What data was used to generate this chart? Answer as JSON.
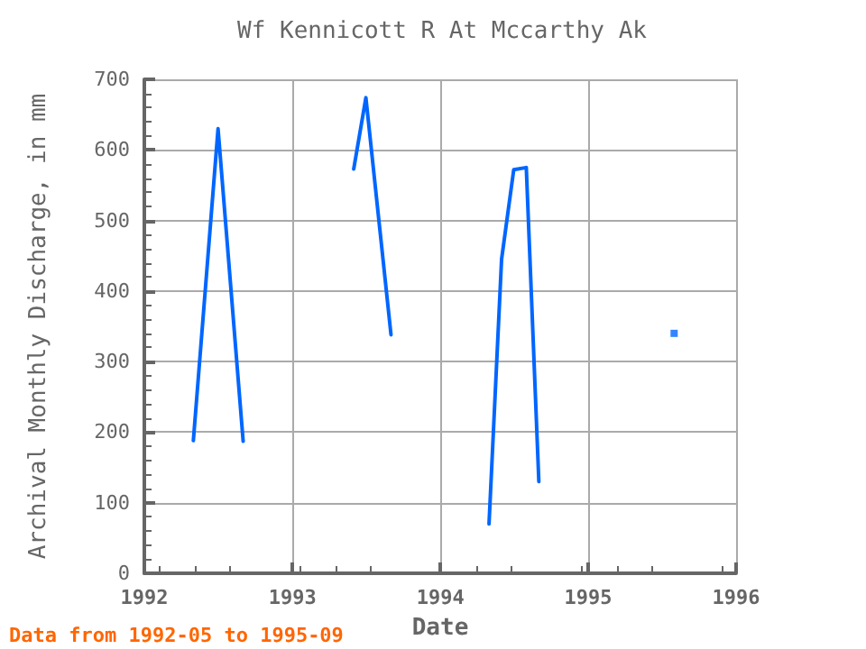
{
  "chart_data": {
    "type": "line",
    "title": "Wf Kennicott R At Mccarthy Ak",
    "xlabel": "Date",
    "ylabel": "Archival Monthly Discharge, in mm",
    "annotations": [
      "Data from 1992-05 to 1995-09"
    ],
    "series": [
      {
        "color": "#0066ff",
        "x": [
          "1992-05",
          "1992-07",
          "1992-09",
          "1993-01",
          "1993-06",
          "1993-07",
          "1993-09",
          "1994-01",
          "1994-05",
          "1994-06",
          "1994-07",
          "1994-08",
          "1994-09"
        ],
        "values": [
          188,
          630,
          187,
          null,
          573,
          674,
          338,
          null,
          70,
          445,
          572,
          575,
          130
        ]
      },
      {
        "type": "scatter",
        "marker": "square",
        "color": "#0066ff",
        "x": [
          "1995-08"
        ],
        "values": [
          340
        ]
      }
    ],
    "xlim": [
      "1992",
      "1996"
    ],
    "xticks": [
      "1992",
      "1993",
      "1994",
      "1995",
      "1996"
    ],
    "ylim": [
      0,
      700
    ],
    "yticks": [
      0,
      100,
      200,
      300,
      400,
      500,
      600,
      700
    ],
    "grid": true,
    "marker": "none"
  }
}
